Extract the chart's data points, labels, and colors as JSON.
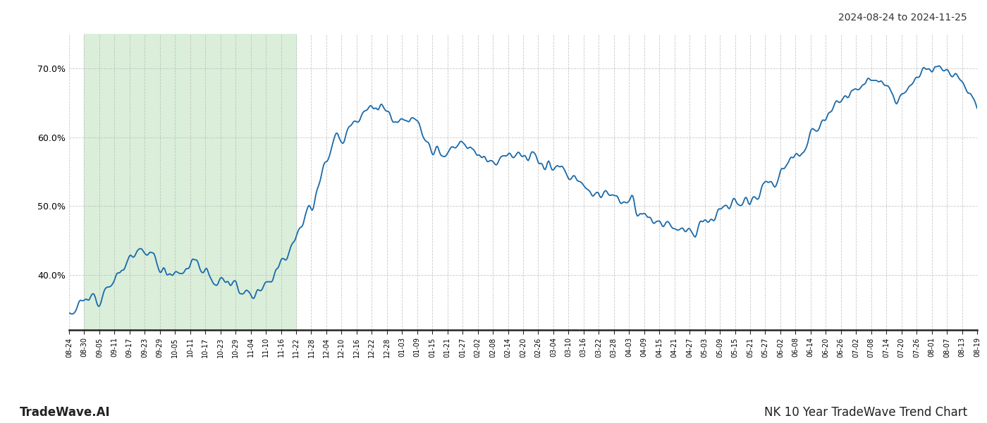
{
  "title_top_right": "2024-08-24 to 2024-11-25",
  "title_bottom_right": "NK 10 Year TradeWave Trend Chart",
  "title_bottom_left": "TradeWave.AI",
  "line_color": "#1a6aaa",
  "line_width": 1.3,
  "background_color": "#ffffff",
  "grid_color": "#bbbbbb",
  "highlight_color": "#daeeda",
  "ylim": [
    32,
    75
  ],
  "yticks": [
    40.0,
    50.0,
    60.0,
    70.0
  ],
  "x_labels": [
    "08-24",
    "08-30",
    "09-05",
    "09-11",
    "09-17",
    "09-23",
    "09-29",
    "10-05",
    "10-11",
    "10-17",
    "10-23",
    "10-29",
    "11-04",
    "11-10",
    "11-16",
    "11-22",
    "11-28",
    "12-04",
    "12-10",
    "12-16",
    "12-22",
    "12-28",
    "01-03",
    "01-09",
    "01-15",
    "01-21",
    "01-27",
    "02-02",
    "02-08",
    "02-14",
    "02-20",
    "02-26",
    "03-04",
    "03-10",
    "03-16",
    "03-22",
    "03-28",
    "04-03",
    "04-09",
    "04-15",
    "04-21",
    "04-27",
    "05-03",
    "05-09",
    "05-15",
    "05-21",
    "05-27",
    "06-02",
    "06-08",
    "06-14",
    "06-20",
    "06-26",
    "07-02",
    "07-08",
    "07-14",
    "07-20",
    "07-26",
    "08-01",
    "08-07",
    "08-13",
    "08-19"
  ],
  "highlight_start_label": "08-30",
  "highlight_end_label": "11-22",
  "noise_seed": 12,
  "noise_sigma": 1.5,
  "noise_amplitude": 1.2,
  "anchor_values": [
    34.5,
    36.0,
    37.5,
    39.5,
    42.0,
    43.5,
    41.5,
    40.5,
    41.5,
    40.5,
    39.0,
    38.5,
    37.5,
    39.0,
    42.0,
    46.0,
    50.0,
    57.0,
    60.0,
    63.0,
    64.5,
    63.5,
    62.5,
    61.5,
    58.0,
    57.5,
    58.5,
    57.5,
    57.0,
    57.5,
    57.0,
    56.5,
    56.0,
    54.5,
    53.0,
    52.0,
    51.5,
    50.0,
    48.5,
    47.5,
    46.5,
    46.5,
    48.0,
    49.0,
    50.5,
    51.5,
    53.0,
    54.5,
    57.0,
    59.5,
    63.0,
    65.0,
    67.0,
    68.5,
    66.5,
    65.5,
    69.5,
    70.0,
    69.5,
    67.5,
    63.0
  ]
}
